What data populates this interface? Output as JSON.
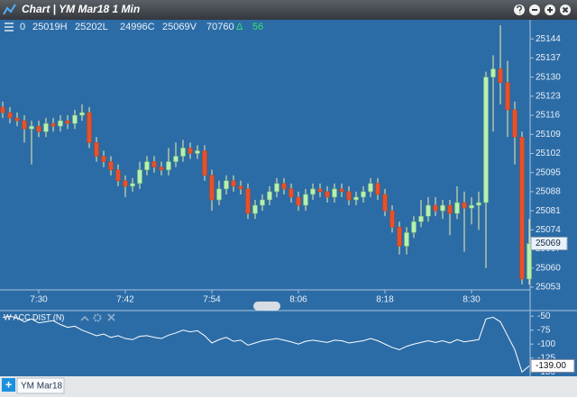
{
  "header": {
    "title": "Chart | YM Mar18 1 Min",
    "info": [
      "0",
      "25019H",
      "25202L",
      "24996C",
      "25069V",
      "70760"
    ],
    "delta_symbol": "Δ",
    "delta": "56",
    "tab_add": "+",
    "tab": "YM Mar18"
  },
  "chart_data": [
    {
      "type": "candlestick",
      "categories": [
        null,
        null,
        null,
        null,
        null,
        "7:30",
        null,
        null,
        null,
        null,
        null,
        null,
        null,
        null,
        null,
        null,
        null,
        "7:42",
        null,
        null,
        null,
        null,
        null,
        null,
        null,
        null,
        null,
        null,
        null,
        "7:54",
        null,
        null,
        null,
        null,
        null,
        null,
        null,
        null,
        null,
        null,
        null,
        "8:06",
        null,
        null,
        null,
        null,
        null,
        null,
        null,
        null,
        null,
        null,
        null,
        "8:18",
        null,
        null,
        null,
        null,
        null,
        null,
        null,
        null,
        null,
        null,
        null,
        "8:30",
        null,
        null,
        null,
        null,
        null,
        null,
        null,
        null
      ],
      "open": [
        25119,
        25117,
        25115,
        25114,
        25111,
        25112,
        25110,
        25113,
        25112,
        25114,
        25113,
        25116,
        25117,
        25106,
        25101,
        25099,
        25096,
        25092,
        25090,
        25091,
        25096,
        25099,
        25097,
        25096,
        25099,
        25101,
        25104,
        25102,
        25103,
        25094,
        25085,
        25089,
        25092,
        25090,
        25089,
        25080,
        25083,
        25085,
        25088,
        25091,
        25089,
        25086,
        25083,
        25087,
        25089,
        25088,
        25086,
        25089,
        25088,
        25085,
        25086,
        25088,
        25091,
        25087,
        25081,
        25075,
        25068,
        25073,
        25077,
        25079,
        25083,
        25081,
        25083,
        25080,
        25084,
        25082,
        25083,
        25084,
        25130,
        25133,
        25128,
        25118,
        25108,
        25056
      ],
      "high": [
        25121,
        25119,
        25117,
        25116,
        25114,
        25114,
        25115,
        25115,
        25116,
        25116,
        25118,
        25120,
        25119,
        25108,
        25103,
        25101,
        25098,
        25094,
        25093,
        25099,
        25101,
        25101,
        25099,
        25104,
        25106,
        25107,
        25106,
        25105,
        25105,
        25096,
        25092,
        25094,
        25094,
        25092,
        25091,
        25085,
        25087,
        25090,
        25093,
        25093,
        25091,
        25088,
        25089,
        25091,
        25091,
        25090,
        25091,
        25091,
        25090,
        25088,
        25090,
        25093,
        25093,
        25089,
        25083,
        25077,
        25075,
        25079,
        25085,
        25086,
        25086,
        25085,
        25085,
        25090,
        25088,
        25086,
        25088,
        25132,
        25138,
        25149,
        25136,
        25121,
        25110,
        25078
      ],
      "low": [
        25115,
        25113,
        25112,
        25106,
        25098,
        25108,
        25108,
        25110,
        25110,
        25111,
        25111,
        25114,
        25104,
        25099,
        25097,
        25094,
        25090,
        25086,
        25088,
        25089,
        25094,
        25095,
        25094,
        25094,
        25097,
        25099,
        25100,
        25100,
        25092,
        25081,
        25083,
        25087,
        25088,
        25087,
        25078,
        25078,
        25081,
        25083,
        25086,
        25087,
        25084,
        25081,
        25081,
        25085,
        25086,
        25084,
        25084,
        25086,
        25083,
        25083,
        25084,
        25086,
        25085,
        25079,
        25073,
        25065,
        25065,
        25071,
        25075,
        25077,
        25079,
        25078,
        25072,
        25078,
        25066,
        25076,
        25074,
        25060,
        25110,
        25120,
        25108,
        25098,
        25054,
        25054
      ],
      "close": [
        25117,
        25115,
        25114,
        25111,
        25112,
        25110,
        25113,
        25112,
        25114,
        25113,
        25116,
        25117,
        25106,
        25101,
        25099,
        25096,
        25092,
        25090,
        25091,
        25096,
        25099,
        25097,
        25096,
        25099,
        25101,
        25104,
        25102,
        25103,
        25094,
        25085,
        25089,
        25092,
        25090,
        25089,
        25080,
        25083,
        25085,
        25088,
        25091,
        25089,
        25086,
        25083,
        25087,
        25089,
        25088,
        25086,
        25089,
        25088,
        25085,
        25086,
        25088,
        25091,
        25087,
        25081,
        25075,
        25068,
        25073,
        25077,
        25079,
        25083,
        25081,
        25083,
        25080,
        25084,
        25082,
        25083,
        25084,
        25130,
        25133,
        25128,
        25118,
        25108,
        25056,
        25069
      ],
      "up_color": "#b8f0b0",
      "down_color": "#e6522c",
      "wick_color": "#f0f0a8",
      "ylim": [
        25052,
        25151
      ],
      "yticks": [
        25053,
        25060,
        25067,
        25074,
        25081,
        25088,
        25095,
        25102,
        25109,
        25116,
        25123,
        25130,
        25137,
        25144
      ]
    },
    {
      "type": "line",
      "title": "W ACC DIST (N)",
      "values": [
        -52,
        -50,
        -53,
        -60,
        -55,
        -62,
        -60,
        -58,
        -65,
        -70,
        -68,
        -75,
        -80,
        -85,
        -82,
        -88,
        -85,
        -90,
        -92,
        -86,
        -85,
        -88,
        -90,
        -84,
        -80,
        -75,
        -78,
        -76,
        -85,
        -98,
        -92,
        -88,
        -95,
        -93,
        -102,
        -98,
        -94,
        -92,
        -90,
        -93,
        -96,
        -100,
        -95,
        -93,
        -95,
        -97,
        -93,
        -94,
        -98,
        -96,
        -94,
        -90,
        -94,
        -100,
        -106,
        -110,
        -104,
        -100,
        -97,
        -94,
        -97,
        -94,
        -98,
        -92,
        -96,
        -94,
        -92,
        -55,
        -52,
        -60,
        -85,
        -110,
        -150,
        -139
      ],
      "value_labels": [
        null,
        null,
        null,
        null,
        null,
        null,
        null,
        null,
        null,
        null,
        null,
        null,
        null,
        null,
        null,
        null,
        null,
        null,
        null,
        null,
        null,
        null,
        null,
        null,
        null,
        null,
        null,
        null,
        null,
        null,
        null,
        null,
        null,
        null,
        null,
        null,
        null,
        null,
        null,
        null,
        null,
        null,
        null,
        null,
        null,
        null,
        null,
        null,
        null,
        null,
        null,
        null,
        null,
        null,
        null,
        null,
        null,
        null,
        null,
        null,
        null,
        null,
        null,
        null,
        null,
        null,
        null,
        null,
        null,
        null,
        null,
        null,
        null,
        "-139.00"
      ],
      "color": "#ffffff",
      "ylim": [
        -156,
        -40
      ],
      "yticks": [
        -50,
        -75,
        -100,
        -125,
        -150
      ]
    }
  ]
}
